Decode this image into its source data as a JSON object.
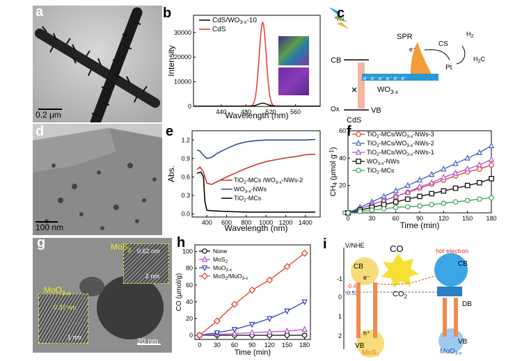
{
  "panels": {
    "a": {
      "label": "a",
      "scale": "0.2 μm"
    },
    "b": {
      "label": "b"
    },
    "c": {
      "label": "c",
      "cb": "CB",
      "vb": "VB",
      "spr": "SPR",
      "cs": "CS",
      "pt": "Pt",
      "h2": "H",
      "h2sub": "2",
      "h2c": "H",
      "h2csub": "2",
      "h2csuf": "C",
      "cds": "CdS",
      "ox": "Ox",
      "wo_main": "WO",
      "wo_sub": "3-x",
      "hv": "hν",
      "e_minus": "e⁻",
      "electrons": "e⁻ e⁻ e⁻ e⁻ e⁻ e⁻"
    },
    "d": {
      "label": "d",
      "scale": "100 nm"
    },
    "e": {
      "label": "e"
    },
    "f": {
      "label": "f"
    },
    "g": {
      "label": "g",
      "scale": "20 nm",
      "mos2": "MoS",
      "mos2sub": "2",
      "moo3": "MoO",
      "moo3sub": "3-x",
      "d1": "0.62 nm",
      "inset1_scale": "2 nm",
      "d2": "0.37 nm",
      "inset2_scale": "1 nm"
    },
    "h": {
      "label": "h"
    },
    "i": {
      "label": "i",
      "vnhe": "V/NHE",
      "co": "CO",
      "co2": "CO",
      "co2sub": "2",
      "hot": "hot electron",
      "cb1": "CB",
      "vb1": "VB",
      "cb2": "CB",
      "vb2": "VB",
      "db": "DB",
      "mos2": "MoS",
      "mos2sub": "2",
      "moo3": "MoO",
      "moo3sub": "3-x",
      "v1": "-0.53",
      "v1b": "-0.47",
      "e": "e⁻",
      "h": "h⁺",
      "y0": "0",
      "y1": "1",
      "y2": "2",
      "yn1": "-1"
    }
  },
  "chart_data": [
    {
      "id": "b",
      "type": "line",
      "xlabel": "Wavelength (nm)",
      "ylabel": "Intensity",
      "xlim": [
        395,
        600
      ],
      "ylim": [
        0,
        37000
      ],
      "xticks": [
        440,
        480,
        520,
        560
      ],
      "yticks": [
        0,
        10000,
        20000,
        30000
      ],
      "legend": [
        {
          "name": "CdS/WO3-x-10",
          "main": "CdS/WO",
          "sub": "3-x",
          "suf": "-10",
          "color": "#000000"
        },
        {
          "name": "CdS",
          "main": "CdS",
          "sub": "",
          "suf": "",
          "color": "#e8281e"
        }
      ],
      "series": [
        {
          "name": "CdS",
          "color": "#e8281e",
          "peak": {
            "x": 507,
            "y": 34000,
            "width": 8
          }
        },
        {
          "name": "CdS/WO3-x-10",
          "color": "#000000",
          "peak": {
            "x": 507,
            "y": 1200,
            "width": 10
          }
        }
      ]
    },
    {
      "id": "e",
      "type": "line",
      "xlabel": "Wavelength (nm)",
      "ylabel": "Abs.",
      "xlim": [
        250,
        1550
      ],
      "ylim": [
        -0.05,
        1.35
      ],
      "xticks": [
        400,
        600,
        800,
        1000,
        1200,
        1400
      ],
      "yticks": [
        0.0,
        0.3,
        0.6,
        0.9,
        1.2
      ],
      "legend": [
        {
          "name": "TiO2-MCs/WO3-x-NWs-2",
          "parts": [
            "TiO",
            "2",
            "-MCs /WO",
            "3-x",
            "-NWs-2"
          ],
          "color": "#c0392b"
        },
        {
          "name": "WO3-x-NWs",
          "parts": [
            "WO",
            "3-x",
            "-NWs"
          ],
          "color": "#2e4a9e"
        },
        {
          "name": "TiO2-MCs",
          "parts": [
            "TiO",
            "2",
            "-MCs"
          ],
          "color": "#000000"
        }
      ],
      "series": [
        {
          "name": "TiO2-MCs/WO3-x-NWs-2",
          "color": "#c0392b",
          "points": [
            [
              300,
              0.72
            ],
            [
              330,
              0.76
            ],
            [
              360,
              0.7
            ],
            [
              400,
              0.5
            ],
            [
              450,
              0.48
            ],
            [
              500,
              0.52
            ],
            [
              600,
              0.6
            ],
            [
              700,
              0.67
            ],
            [
              800,
              0.74
            ],
            [
              900,
              0.8
            ],
            [
              1000,
              0.85
            ],
            [
              1100,
              0.88
            ],
            [
              1200,
              0.91
            ],
            [
              1300,
              0.93
            ],
            [
              1400,
              0.96
            ],
            [
              1500,
              0.97
            ]
          ]
        },
        {
          "name": "WO3-x-NWs",
          "color": "#2e4a9e",
          "points": [
            [
              300,
              1.04
            ],
            [
              330,
              1.02
            ],
            [
              360,
              0.96
            ],
            [
              400,
              0.9
            ],
            [
              450,
              0.92
            ],
            [
              500,
              0.98
            ],
            [
              600,
              1.06
            ],
            [
              700,
              1.13
            ],
            [
              800,
              1.17
            ],
            [
              900,
              1.19
            ],
            [
              1000,
              1.2
            ],
            [
              1200,
              1.2
            ],
            [
              1400,
              1.2
            ],
            [
              1500,
              1.21
            ]
          ]
        },
        {
          "name": "TiO2-MCs",
          "color": "#000000",
          "points": [
            [
              300,
              0.66
            ],
            [
              340,
              0.68
            ],
            [
              365,
              0.6
            ],
            [
              380,
              0.2
            ],
            [
              400,
              0.06
            ],
            [
              450,
              0.05
            ],
            [
              600,
              0.04
            ],
            [
              800,
              0.03
            ],
            [
              1000,
              0.03
            ],
            [
              1200,
              0.03
            ],
            [
              1400,
              0.03
            ],
            [
              1500,
              0.03
            ]
          ]
        }
      ]
    },
    {
      "id": "f",
      "type": "line",
      "xlabel": "Time  (min)",
      "ylabel": "CH",
      "ylabel_sub": "4",
      "ylabel_suf": " (μmol g",
      "ylabel_sup": "-1",
      "ylabel_end": ")",
      "xlim": [
        0,
        180
      ],
      "ylim": [
        0,
        60
      ],
      "xticks": [
        0,
        30,
        60,
        90,
        120,
        150,
        180
      ],
      "yticks": [
        0,
        20,
        40,
        60
      ],
      "x": [
        0,
        15,
        30,
        45,
        60,
        75,
        90,
        105,
        120,
        135,
        150,
        165,
        180
      ],
      "series": [
        {
          "name": "TiO2-MCs/WO3-x-NWs-3",
          "parts": [
            "TiO",
            "2",
            "-MCs/WO",
            "3-x",
            "-NWs-3"
          ],
          "color": "#e0392b",
          "marker": "circle",
          "values": [
            0,
            3,
            6,
            9,
            12,
            15,
            18,
            21,
            24,
            27,
            30,
            32,
            35
          ]
        },
        {
          "name": "TiO2-MCs/WO3-x-NWs-2",
          "parts": [
            "TiO",
            "2",
            "-MCs/WO",
            "3-x",
            "-NWs-2"
          ],
          "color": "#3a5fc4",
          "marker": "triangle",
          "values": [
            0,
            4,
            8,
            12,
            16,
            20,
            24,
            28,
            32,
            36,
            40,
            44,
            49
          ]
        },
        {
          "name": "TiO2-MCs/WO3-x-NWs-1",
          "parts": [
            "TiO",
            "2",
            "-MCs/WO",
            "3-x",
            "-NWs-1"
          ],
          "color": "#b04fc4",
          "marker": "triangle",
          "values": [
            0,
            3,
            6,
            9,
            12,
            15,
            19,
            22,
            26,
            29,
            32,
            35,
            39
          ]
        },
        {
          "name": "WO3-x-NWs",
          "parts": [
            "WO",
            "3-x",
            "-NWs"
          ],
          "color": "#000000",
          "marker": "square",
          "values": [
            0,
            2,
            4,
            6,
            8,
            10,
            12,
            14,
            16,
            18,
            20,
            22,
            25
          ]
        },
        {
          "name": "TiO2-MCs",
          "parts": [
            "TiO",
            "2",
            "-MCs"
          ],
          "color": "#3aa05a",
          "marker": "circle",
          "values": [
            0,
            1,
            2,
            3,
            4,
            4.5,
            5,
            6,
            7,
            8,
            9,
            10,
            11
          ]
        }
      ]
    },
    {
      "id": "h",
      "type": "line",
      "xlabel": "Time (min)",
      "ylabel": "CO (μmol/g)",
      "xlim": [
        -8,
        190
      ],
      "ylim": [
        -5,
        108
      ],
      "xticks": [
        0,
        30,
        60,
        90,
        120,
        150,
        180
      ],
      "yticks": [
        0,
        20,
        40,
        60,
        80,
        100
      ],
      "x": [
        0,
        30,
        60,
        90,
        120,
        150,
        180
      ],
      "series": [
        {
          "name": "None",
          "parts": [
            "None"
          ],
          "color": "#000000",
          "marker": "circle",
          "values": [
            0,
            0,
            0,
            0,
            0,
            0,
            0
          ]
        },
        {
          "name": "MoS2",
          "parts": [
            "MoS",
            "2"
          ],
          "color": "#b04fc4",
          "marker": "triangle",
          "values": [
            0,
            1,
            2,
            3,
            4,
            5,
            7
          ]
        },
        {
          "name": "MoO3-x",
          "parts": [
            "MoO",
            "3-x"
          ],
          "color": "#2e3fb8",
          "marker": "triangle-down",
          "values": [
            0,
            3,
            7,
            13,
            20,
            29,
            40
          ]
        },
        {
          "name": "MoS2/MoO3-x",
          "parts": [
            "MoS",
            "2",
            "/MoO",
            "3-x"
          ],
          "color": "#e0392b",
          "marker": "diamond",
          "values": [
            0,
            17,
            37,
            54,
            66,
            82,
            98
          ]
        }
      ]
    }
  ]
}
